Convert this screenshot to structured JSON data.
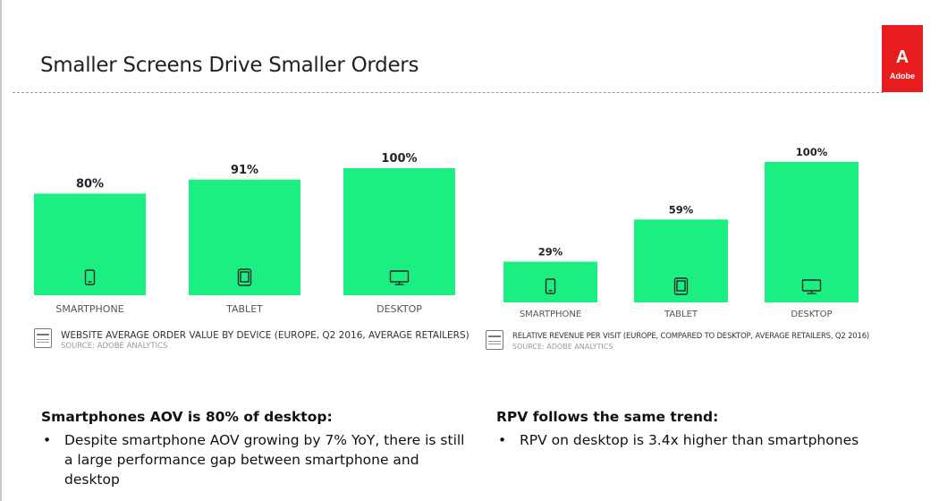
{
  "slide": {
    "title": "Smaller Screens Drive Smaller Orders"
  },
  "logo": {
    "mark": "A",
    "text": "Adobe",
    "color": "#e61c1f"
  },
  "colors": {
    "bar": "#1bef82",
    "label": "#222222",
    "category": "#555555"
  },
  "chart_data": [
    {
      "type": "bar",
      "title": "WEBSITE AVERAGE ORDER VALUE BY DEVICE (EUROPE, Q2 2016, AVERAGE RETAILERS)",
      "source": "SOURCE: ADOBE ANALYTICS",
      "categories": [
        "SMARTPHONE",
        "TABLET",
        "DESKTOP"
      ],
      "values": [
        80,
        91,
        100
      ],
      "labels": [
        "80%",
        "91%",
        "100%"
      ],
      "icons": [
        "smartphone-icon",
        "tablet-icon",
        "desktop-icon"
      ],
      "ylim": [
        0,
        100
      ]
    },
    {
      "type": "bar",
      "title": "RELATIVE REVENUE PER VISIT (EUROPE, COMPARED TO DESKTOP, AVERAGE RETAILERS, Q2 2016)",
      "source": "SOURCE: ADOBE ANALYTICS",
      "categories": [
        "SMARTPHONE",
        "TABLET",
        "DESKTOP"
      ],
      "values": [
        29,
        59,
        100
      ],
      "labels": [
        "29%",
        "59%",
        "100%"
      ],
      "icons": [
        "smartphone-icon",
        "tablet-icon",
        "desktop-icon"
      ],
      "ylim": [
        0,
        100
      ]
    }
  ],
  "insights": [
    {
      "heading": "Smartphones AOV is 80% of desktop:",
      "bullets": [
        "Despite smartphone AOV growing by 7% YoY, there is still a large performance gap between smartphone and desktop"
      ]
    },
    {
      "heading": "RPV follows the same trend:",
      "bullets": [
        "RPV on desktop is 3.4x higher than smartphones"
      ]
    }
  ]
}
